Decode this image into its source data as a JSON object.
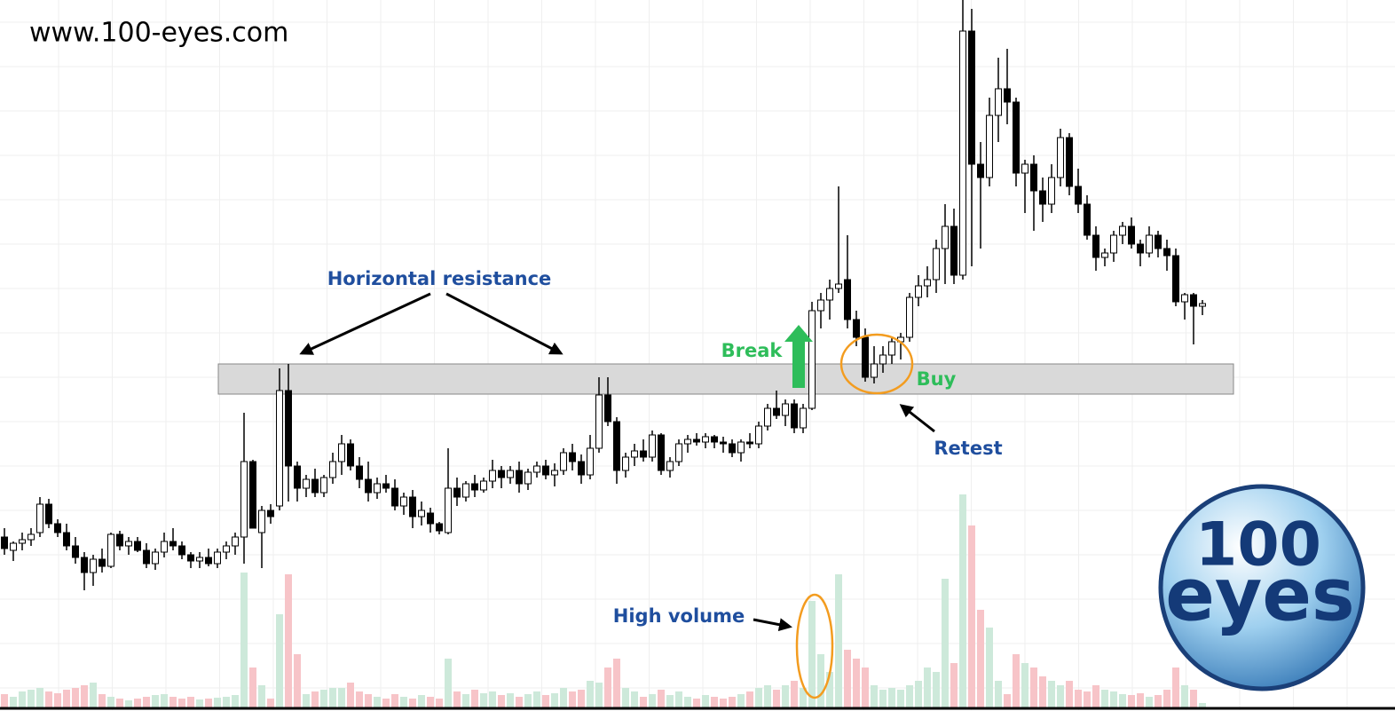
{
  "chart_data": {
    "type": "candlestick",
    "site": "www.100-eyes.com",
    "ylim": [
      0,
      800
    ],
    "volume_ylim": [
      0,
      800
    ],
    "up_color": "#ffffff",
    "down_color": "#000000",
    "volume_up_color": "#cde9da",
    "volume_down_color": "#f7c4c8",
    "resistance_zone": [
      356,
      390
    ],
    "zone_color": "#d9d9d9",
    "annotations": {
      "resistance": "Horizontal resistance",
      "break": "Break",
      "buy": "Buy",
      "retest": "Retest",
      "volume": "High volume"
    },
    "logo": {
      "top": "100",
      "bottom": "eyes"
    },
    "candles": [
      {
        "o": 195,
        "h": 205,
        "l": 175,
        "c": 182,
        "v": 15
      },
      {
        "o": 180,
        "h": 190,
        "l": 168,
        "c": 188,
        "v": 12
      },
      {
        "o": 188,
        "h": 200,
        "l": 180,
        "c": 192,
        "v": 18
      },
      {
        "o": 192,
        "h": 205,
        "l": 185,
        "c": 198,
        "v": 20
      },
      {
        "o": 200,
        "h": 240,
        "l": 195,
        "c": 232,
        "v": 22
      },
      {
        "o": 232,
        "h": 238,
        "l": 205,
        "c": 210,
        "v": 18
      },
      {
        "o": 210,
        "h": 215,
        "l": 195,
        "c": 200,
        "v": 16
      },
      {
        "o": 200,
        "h": 210,
        "l": 180,
        "c": 185,
        "v": 20
      },
      {
        "o": 185,
        "h": 195,
        "l": 165,
        "c": 172,
        "v": 22
      },
      {
        "o": 172,
        "h": 178,
        "l": 135,
        "c": 155,
        "v": 25
      },
      {
        "o": 155,
        "h": 175,
        "l": 140,
        "c": 170,
        "v": 28
      },
      {
        "o": 170,
        "h": 182,
        "l": 155,
        "c": 162,
        "v": 15
      },
      {
        "o": 162,
        "h": 200,
        "l": 160,
        "c": 198,
        "v": 12
      },
      {
        "o": 198,
        "h": 202,
        "l": 180,
        "c": 185,
        "v": 10
      },
      {
        "o": 185,
        "h": 195,
        "l": 175,
        "c": 190,
        "v": 8
      },
      {
        "o": 190,
        "h": 195,
        "l": 178,
        "c": 180,
        "v": 10
      },
      {
        "o": 180,
        "h": 188,
        "l": 160,
        "c": 165,
        "v": 12
      },
      {
        "o": 165,
        "h": 182,
        "l": 158,
        "c": 178,
        "v": 14
      },
      {
        "o": 178,
        "h": 200,
        "l": 172,
        "c": 190,
        "v": 15
      },
      {
        "o": 190,
        "h": 205,
        "l": 180,
        "c": 185,
        "v": 12
      },
      {
        "o": 185,
        "h": 190,
        "l": 170,
        "c": 175,
        "v": 10
      },
      {
        "o": 175,
        "h": 178,
        "l": 160,
        "c": 168,
        "v": 12
      },
      {
        "o": 168,
        "h": 178,
        "l": 160,
        "c": 172,
        "v": 9
      },
      {
        "o": 172,
        "h": 182,
        "l": 162,
        "c": 165,
        "v": 10
      },
      {
        "o": 165,
        "h": 182,
        "l": 160,
        "c": 178,
        "v": 11
      },
      {
        "o": 178,
        "h": 190,
        "l": 170,
        "c": 185,
        "v": 12
      },
      {
        "o": 185,
        "h": 200,
        "l": 175,
        "c": 195,
        "v": 14
      },
      {
        "o": 195,
        "h": 335,
        "l": 165,
        "c": 280,
        "v": 152
      },
      {
        "o": 280,
        "h": 282,
        "l": 210,
        "c": 205,
        "v": 45
      },
      {
        "o": 200,
        "h": 230,
        "l": 160,
        "c": 225,
        "v": 25
      },
      {
        "o": 225,
        "h": 232,
        "l": 210,
        "c": 218,
        "v": 10
      },
      {
        "o": 230,
        "h": 385,
        "l": 225,
        "c": 360,
        "v": 105
      },
      {
        "o": 360,
        "h": 390,
        "l": 235,
        "c": 275,
        "v": 150
      },
      {
        "o": 275,
        "h": 280,
        "l": 235,
        "c": 250,
        "v": 60
      },
      {
        "o": 250,
        "h": 265,
        "l": 240,
        "c": 260,
        "v": 15
      },
      {
        "o": 260,
        "h": 272,
        "l": 240,
        "c": 245,
        "v": 18
      },
      {
        "o": 245,
        "h": 265,
        "l": 240,
        "c": 262,
        "v": 20
      },
      {
        "o": 262,
        "h": 290,
        "l": 255,
        "c": 280,
        "v": 22
      },
      {
        "o": 280,
        "h": 310,
        "l": 265,
        "c": 300,
        "v": 22
      },
      {
        "o": 300,
        "h": 305,
        "l": 270,
        "c": 275,
        "v": 28
      },
      {
        "o": 275,
        "h": 285,
        "l": 250,
        "c": 260,
        "v": 18
      },
      {
        "o": 260,
        "h": 280,
        "l": 235,
        "c": 245,
        "v": 15
      },
      {
        "o": 245,
        "h": 262,
        "l": 238,
        "c": 255,
        "v": 12
      },
      {
        "o": 255,
        "h": 265,
        "l": 245,
        "c": 250,
        "v": 10
      },
      {
        "o": 250,
        "h": 260,
        "l": 225,
        "c": 230,
        "v": 15
      },
      {
        "o": 230,
        "h": 245,
        "l": 220,
        "c": 240,
        "v": 12
      },
      {
        "o": 240,
        "h": 248,
        "l": 205,
        "c": 218,
        "v": 10
      },
      {
        "o": 218,
        "h": 235,
        "l": 208,
        "c": 225,
        "v": 14
      },
      {
        "o": 222,
        "h": 228,
        "l": 200,
        "c": 210,
        "v": 12
      },
      {
        "o": 210,
        "h": 212,
        "l": 198,
        "c": 202,
        "v": 10
      },
      {
        "o": 200,
        "h": 295,
        "l": 198,
        "c": 250,
        "v": 55
      },
      {
        "o": 250,
        "h": 262,
        "l": 230,
        "c": 240,
        "v": 18
      },
      {
        "o": 240,
        "h": 258,
        "l": 235,
        "c": 255,
        "v": 15
      },
      {
        "o": 255,
        "h": 265,
        "l": 240,
        "c": 248,
        "v": 20
      },
      {
        "o": 248,
        "h": 262,
        "l": 245,
        "c": 258,
        "v": 16
      },
      {
        "o": 258,
        "h": 282,
        "l": 250,
        "c": 270,
        "v": 18
      },
      {
        "o": 270,
        "h": 275,
        "l": 250,
        "c": 262,
        "v": 14
      },
      {
        "o": 262,
        "h": 275,
        "l": 255,
        "c": 270,
        "v": 16
      },
      {
        "o": 270,
        "h": 280,
        "l": 245,
        "c": 255,
        "v": 12
      },
      {
        "o": 255,
        "h": 272,
        "l": 248,
        "c": 268,
        "v": 15
      },
      {
        "o": 268,
        "h": 280,
        "l": 262,
        "c": 275,
        "v": 18
      },
      {
        "o": 275,
        "h": 282,
        "l": 260,
        "c": 265,
        "v": 14
      },
      {
        "o": 265,
        "h": 278,
        "l": 252,
        "c": 270,
        "v": 16
      },
      {
        "o": 270,
        "h": 295,
        "l": 265,
        "c": 290,
        "v": 22
      },
      {
        "o": 290,
        "h": 300,
        "l": 270,
        "c": 280,
        "v": 18
      },
      {
        "o": 280,
        "h": 288,
        "l": 255,
        "c": 265,
        "v": 20
      },
      {
        "o": 265,
        "h": 310,
        "l": 260,
        "c": 295,
        "v": 30
      },
      {
        "o": 295,
        "h": 375,
        "l": 290,
        "c": 355,
        "v": 28
      },
      {
        "o": 355,
        "h": 375,
        "l": 320,
        "c": 325,
        "v": 45
      },
      {
        "o": 325,
        "h": 330,
        "l": 255,
        "c": 270,
        "v": 55
      },
      {
        "o": 270,
        "h": 290,
        "l": 262,
        "c": 285,
        "v": 22
      },
      {
        "o": 285,
        "h": 300,
        "l": 275,
        "c": 292,
        "v": 18
      },
      {
        "o": 292,
        "h": 305,
        "l": 280,
        "c": 285,
        "v": 12
      },
      {
        "o": 285,
        "h": 315,
        "l": 280,
        "c": 310,
        "v": 15
      },
      {
        "o": 310,
        "h": 312,
        "l": 265,
        "c": 270,
        "v": 20
      },
      {
        "o": 270,
        "h": 285,
        "l": 262,
        "c": 280,
        "v": 14
      },
      {
        "o": 280,
        "h": 305,
        "l": 275,
        "c": 300,
        "v": 18
      },
      {
        "o": 300,
        "h": 310,
        "l": 290,
        "c": 305,
        "v": 12
      },
      {
        "o": 305,
        "h": 312,
        "l": 298,
        "c": 302,
        "v": 10
      },
      {
        "o": 302,
        "h": 312,
        "l": 295,
        "c": 308,
        "v": 14
      },
      {
        "o": 308,
        "h": 310,
        "l": 295,
        "c": 302,
        "v": 12
      },
      {
        "o": 302,
        "h": 308,
        "l": 290,
        "c": 300,
        "v": 10
      },
      {
        "o": 300,
        "h": 305,
        "l": 285,
        "c": 290,
        "v": 12
      },
      {
        "o": 290,
        "h": 305,
        "l": 280,
        "c": 302,
        "v": 15
      },
      {
        "o": 302,
        "h": 312,
        "l": 295,
        "c": 300,
        "v": 18
      },
      {
        "o": 300,
        "h": 325,
        "l": 295,
        "c": 320,
        "v": 22
      },
      {
        "o": 320,
        "h": 345,
        "l": 315,
        "c": 340,
        "v": 25
      },
      {
        "o": 340,
        "h": 360,
        "l": 328,
        "c": 332,
        "v": 20
      },
      {
        "o": 332,
        "h": 350,
        "l": 320,
        "c": 345,
        "v": 25
      },
      {
        "o": 345,
        "h": 350,
        "l": 312,
        "c": 318,
        "v": 30
      },
      {
        "o": 318,
        "h": 345,
        "l": 312,
        "c": 340,
        "v": 22
      },
      {
        "o": 340,
        "h": 460,
        "l": 338,
        "c": 450,
        "v": 120
      },
      {
        "o": 450,
        "h": 470,
        "l": 430,
        "c": 462,
        "v": 60
      },
      {
        "o": 462,
        "h": 485,
        "l": 440,
        "c": 475,
        "v": 40
      },
      {
        "o": 475,
        "h": 590,
        "l": 470,
        "c": 480,
        "v": 150
      },
      {
        "o": 485,
        "h": 535,
        "l": 430,
        "c": 440,
        "v": 65
      },
      {
        "o": 440,
        "h": 450,
        "l": 410,
        "c": 420,
        "v": 55
      },
      {
        "o": 420,
        "h": 430,
        "l": 370,
        "c": 375,
        "v": 45
      },
      {
        "o": 375,
        "h": 410,
        "l": 368,
        "c": 390,
        "v": 25
      },
      {
        "o": 390,
        "h": 410,
        "l": 380,
        "c": 400,
        "v": 20
      },
      {
        "o": 400,
        "h": 420,
        "l": 390,
        "c": 415,
        "v": 22
      },
      {
        "o": 415,
        "h": 425,
        "l": 395,
        "c": 420,
        "v": 20
      },
      {
        "o": 420,
        "h": 470,
        "l": 415,
        "c": 465,
        "v": 25
      },
      {
        "o": 465,
        "h": 490,
        "l": 455,
        "c": 478,
        "v": 30
      },
      {
        "o": 478,
        "h": 500,
        "l": 465,
        "c": 485,
        "v": 45
      },
      {
        "o": 485,
        "h": 530,
        "l": 470,
        "c": 520,
        "v": 40
      },
      {
        "o": 520,
        "h": 570,
        "l": 480,
        "c": 545,
        "v": 145
      },
      {
        "o": 545,
        "h": 565,
        "l": 480,
        "c": 490,
        "v": 50
      },
      {
        "o": 490,
        "h": 800,
        "l": 485,
        "c": 765,
        "v": 240
      },
      {
        "o": 765,
        "h": 790,
        "l": 500,
        "c": 615,
        "v": 205
      },
      {
        "o": 615,
        "h": 640,
        "l": 520,
        "c": 600,
        "v": 110
      },
      {
        "o": 600,
        "h": 690,
        "l": 590,
        "c": 670,
        "v": 90
      },
      {
        "o": 670,
        "h": 735,
        "l": 640,
        "c": 700,
        "v": 30
      },
      {
        "o": 700,
        "h": 745,
        "l": 660,
        "c": 685,
        "v": 15
      },
      {
        "o": 685,
        "h": 690,
        "l": 590,
        "c": 605,
        "v": 60
      },
      {
        "o": 605,
        "h": 620,
        "l": 560,
        "c": 615,
        "v": 50
      },
      {
        "o": 615,
        "h": 625,
        "l": 540,
        "c": 585,
        "v": 45
      },
      {
        "o": 585,
        "h": 600,
        "l": 550,
        "c": 570,
        "v": 35
      },
      {
        "o": 570,
        "h": 615,
        "l": 560,
        "c": 600,
        "v": 30
      },
      {
        "o": 600,
        "h": 655,
        "l": 590,
        "c": 645,
        "v": 25
      },
      {
        "o": 645,
        "h": 650,
        "l": 580,
        "c": 590,
        "v": 30
      },
      {
        "o": 590,
        "h": 610,
        "l": 560,
        "c": 570,
        "v": 20
      },
      {
        "o": 570,
        "h": 580,
        "l": 530,
        "c": 535,
        "v": 18
      },
      {
        "o": 535,
        "h": 545,
        "l": 495,
        "c": 510,
        "v": 25
      },
      {
        "o": 510,
        "h": 520,
        "l": 500,
        "c": 515,
        "v": 20
      },
      {
        "o": 515,
        "h": 540,
        "l": 505,
        "c": 535,
        "v": 18
      },
      {
        "o": 535,
        "h": 550,
        "l": 525,
        "c": 545,
        "v": 15
      },
      {
        "o": 545,
        "h": 555,
        "l": 520,
        "c": 525,
        "v": 14
      },
      {
        "o": 525,
        "h": 530,
        "l": 500,
        "c": 515,
        "v": 16
      },
      {
        "o": 515,
        "h": 545,
        "l": 510,
        "c": 535,
        "v": 12
      },
      {
        "o": 535,
        "h": 540,
        "l": 510,
        "c": 520,
        "v": 14
      },
      {
        "o": 520,
        "h": 530,
        "l": 495,
        "c": 512,
        "v": 20
      },
      {
        "o": 512,
        "h": 520,
        "l": 455,
        "c": 460,
        "v": 45
      },
      {
        "o": 460,
        "h": 470,
        "l": 440,
        "c": 468,
        "v": 25
      },
      {
        "o": 468,
        "h": 470,
        "l": 412,
        "c": 455,
        "v": 20
      },
      {
        "o": 455,
        "h": 462,
        "l": 445,
        "c": 458,
        "v": 5
      }
    ]
  }
}
